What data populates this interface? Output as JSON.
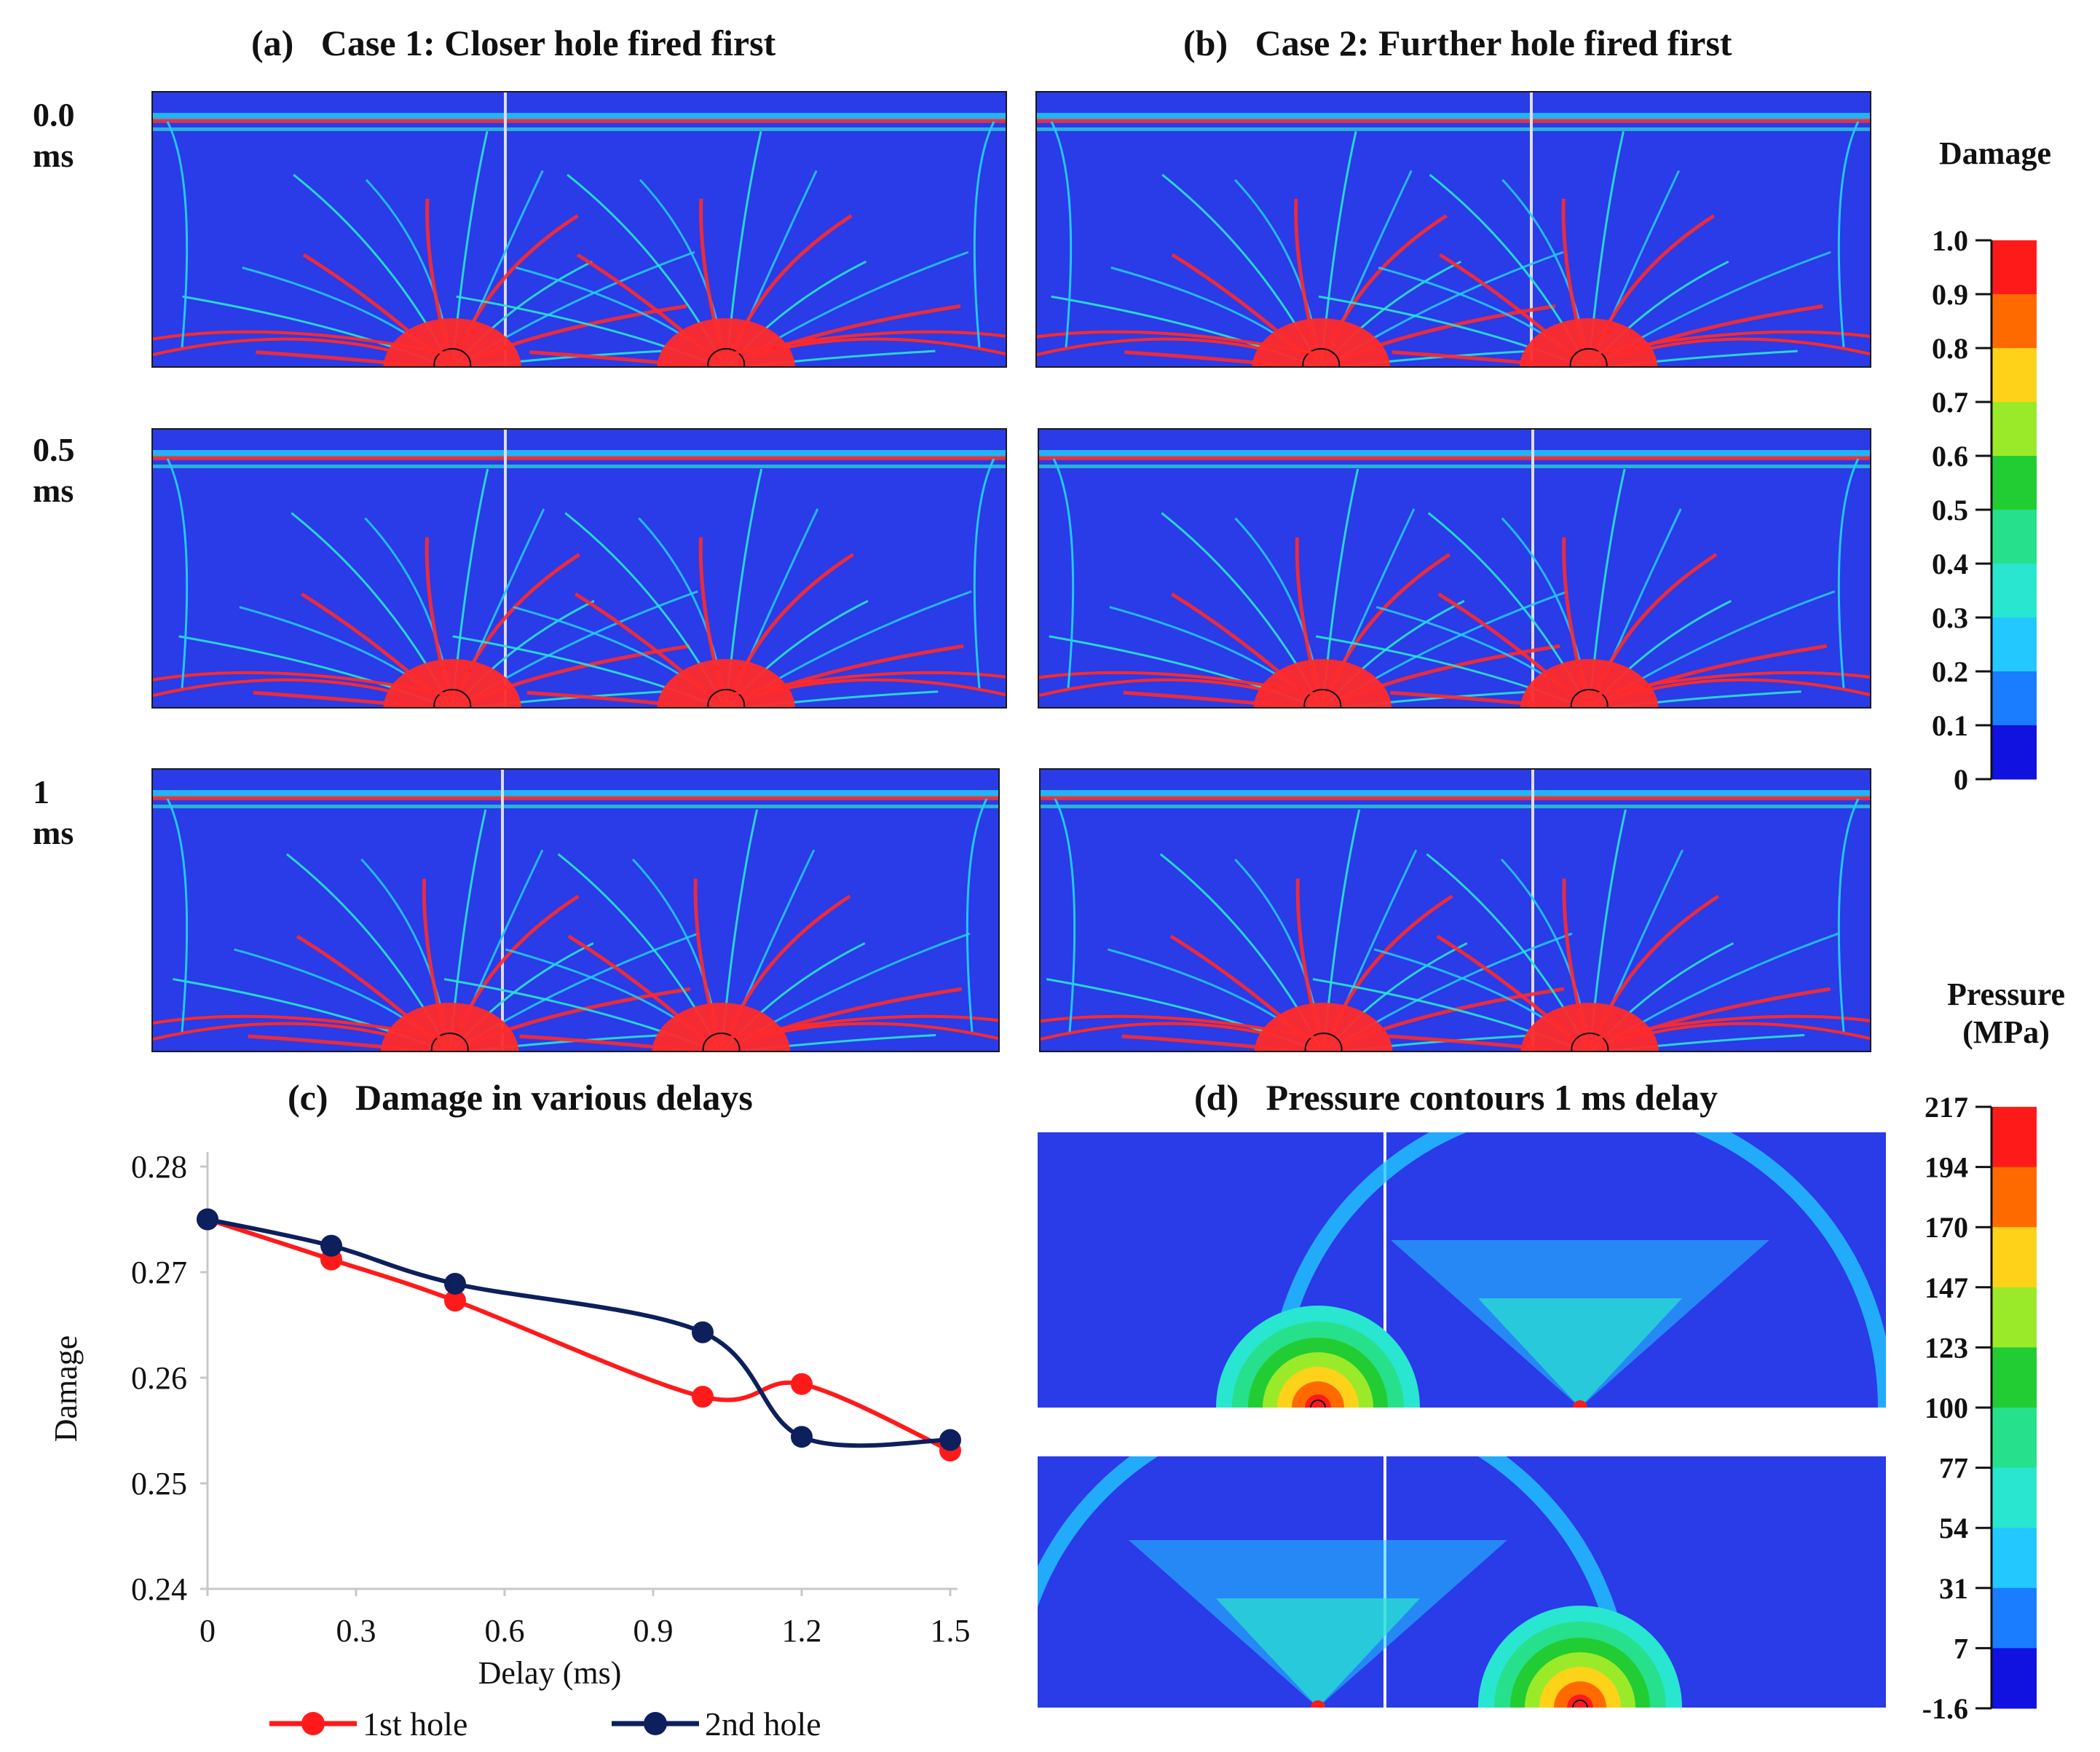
{
  "titles": {
    "a": "(a)   Case 1: Closer hole fired first",
    "b": "(b)   Case 2: Further hole fired first",
    "c": "(c)   Damage in various delays",
    "d": "(d)   Pressure contours 1 ms delay"
  },
  "row_labels": [
    {
      "value": "0.0",
      "unit": "ms"
    },
    {
      "value": "0.5",
      "unit": "ms"
    },
    {
      "value": "1",
      "unit": "ms"
    }
  ],
  "damage_colorbar": {
    "title": "Damage",
    "labels": [
      "1.0",
      "0.9",
      "0.8",
      "0.7",
      "0.6",
      "0.5",
      "0.4",
      "0.3",
      "0.2",
      "0.1",
      "0"
    ],
    "colors": [
      "#ff1a1a",
      "#ff6a00",
      "#ffd21a",
      "#9aea2a",
      "#22cc33",
      "#27e08c",
      "#29e6d0",
      "#22c8ff",
      "#1a7cff",
      "#1111e0"
    ]
  },
  "pressure_colorbar": {
    "title_line1": "Pressure",
    "title_line2": "(MPa)",
    "labels": [
      "217",
      "194",
      "170",
      "147",
      "123",
      "100",
      "77",
      "54",
      "31",
      "7",
      "-1.6"
    ],
    "colors": [
      "#ff1a1a",
      "#ff6a00",
      "#ffd21a",
      "#9aea2a",
      "#22cc33",
      "#27e08c",
      "#29e6d0",
      "#22c8ff",
      "#1a7cff",
      "#1111e0"
    ]
  },
  "chart_data": {
    "type": "line",
    "title": "(c)   Damage in various delays",
    "xlabel": "Delay (ms)",
    "ylabel": "Damage",
    "xlim": [
      0,
      1.5
    ],
    "ylim": [
      0.24,
      0.28
    ],
    "xticks": [
      "0",
      "0.3",
      "0.6",
      "0.9",
      "1.2",
      "1.5"
    ],
    "yticks": [
      "0.24",
      "0.25",
      "0.26",
      "0.27",
      "0.28"
    ],
    "grid": false,
    "legend_position": "bottom",
    "series": [
      {
        "name": "1st hole",
        "color": "#ff1a1a",
        "x": [
          0,
          0.25,
          0.5,
          1.0,
          1.2,
          1.5
        ],
        "y": [
          0.275,
          0.2712,
          0.2673,
          0.2582,
          0.2594,
          0.2531
        ]
      },
      {
        "name": "2nd hole",
        "color": "#0d1f5c",
        "x": [
          0,
          0.25,
          0.5,
          1.0,
          1.2,
          1.5
        ],
        "y": [
          0.275,
          0.2725,
          0.2689,
          0.2643,
          0.2544,
          0.2541
        ]
      }
    ]
  }
}
